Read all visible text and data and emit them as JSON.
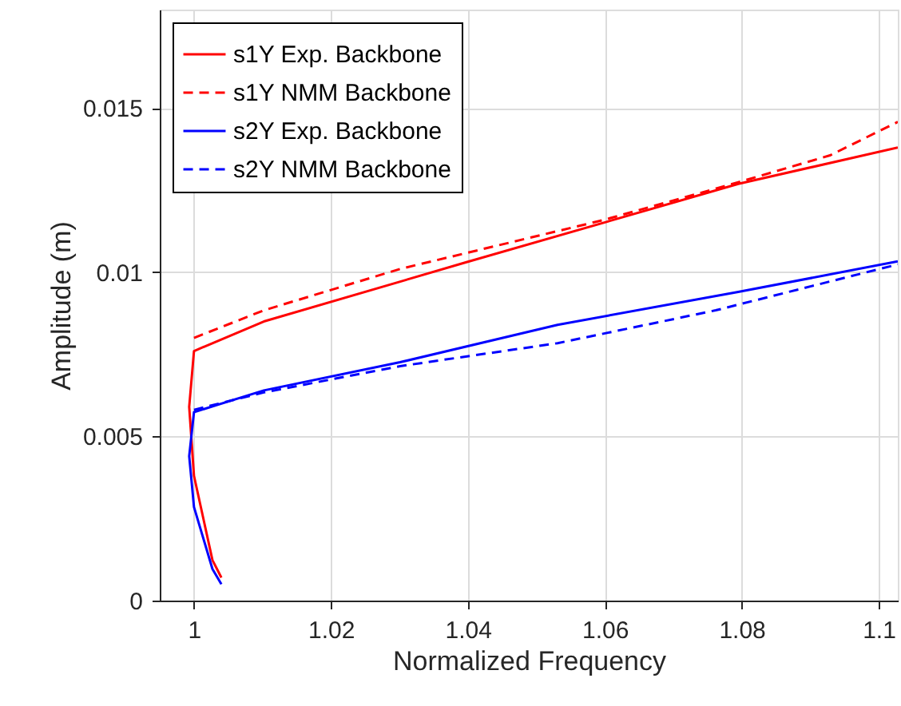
{
  "chart_data": {
    "type": "line",
    "xlabel": "Normalized Frequency",
    "ylabel": "Amplitude (m)",
    "xlim": [
      0.995,
      1.1028
    ],
    "ylim": [
      0,
      0.018
    ],
    "xticks": [
      1,
      1.02,
      1.04,
      1.06,
      1.08,
      1.1
    ],
    "yticks": [
      0,
      0.005,
      0.01,
      0.015
    ],
    "grid": true,
    "legend": "top left",
    "marker": "none",
    "series": [
      {
        "name": "s1Y Exp. Backbone",
        "color": "#ff0000",
        "line_style": "solid",
        "x": [
          1.004,
          1.0027,
          1.0,
          0.9993,
          1.0,
          1.0102,
          1.0397,
          1.0795,
          1.1028
        ],
        "values": [
          0.0007,
          0.00123,
          0.0038,
          0.0059,
          0.0076,
          0.0085,
          0.0103,
          0.01269,
          0.0138
        ]
      },
      {
        "name": "s1Y NMM Backbone",
        "color": "#ff0000",
        "line_style": "dashed",
        "x": [
          1.0,
          1.0102,
          1.0301,
          1.0598,
          1.0795,
          1.0929,
          1.1028
        ],
        "values": [
          0.008,
          0.00884,
          0.0101,
          0.01159,
          0.01274,
          0.01356,
          0.01458
        ]
      },
      {
        "name": "s2Y Exp. Backbone",
        "color": "#0000ff",
        "line_style": "solid",
        "x": [
          1.004,
          1.0027,
          1.0,
          0.9993,
          1.0,
          1.0102,
          1.0301,
          1.0531,
          1.0795,
          1.1028
        ],
        "values": [
          0.0005,
          0.00096,
          0.00285,
          0.0044,
          0.00574,
          0.0064,
          0.00726,
          0.0084,
          0.0094,
          0.01033
        ]
      },
      {
        "name": "s2Y NMM Backbone",
        "color": "#0000ff",
        "line_style": "dashed",
        "x": [
          1.0,
          1.0102,
          1.0301,
          1.0531,
          1.0762,
          1.1028
        ],
        "values": [
          0.00581,
          0.00634,
          0.00714,
          0.00784,
          0.00884,
          0.01024
        ]
      }
    ]
  }
}
